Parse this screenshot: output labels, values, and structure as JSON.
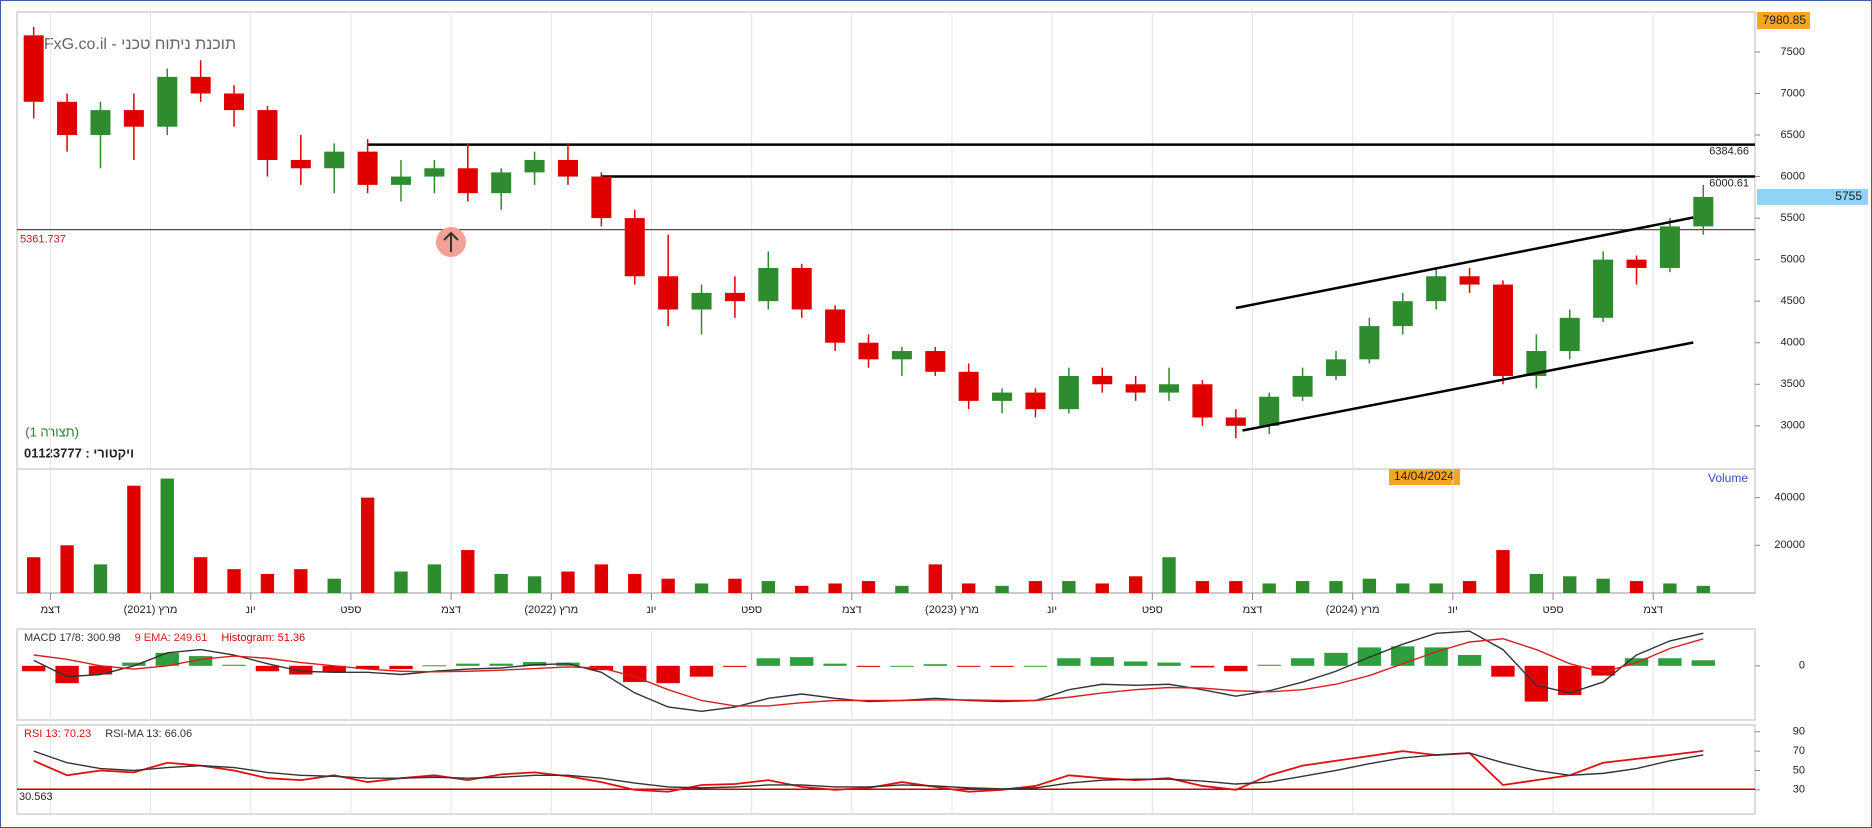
{
  "chart_data": [
    {
      "type": "candlestick",
      "title": "תוכנת ניתוח טכני - FxG.co.il",
      "annotations": [
        "(תצורה 1)",
        "ויקטורי : 01123777",
        "14/04/2024"
      ],
      "up_color": "#2e8b2e",
      "down_color": "#e00000",
      "open": [
        7700,
        6900,
        6500,
        6800,
        6600,
        7200,
        7000,
        6800,
        6200,
        6100,
        6300,
        5900,
        6000,
        6100,
        5800,
        6050,
        6200,
        6000,
        5500,
        4800,
        4400,
        4600,
        4500,
        4900,
        4400,
        4000,
        3800,
        3900,
        3650,
        3300,
        3400,
        3200,
        3600,
        3500,
        3400,
        3500,
        3100,
        3000,
        3350,
        3600,
        3800,
        4200,
        4500,
        4800,
        4700,
        3600,
        3900,
        4300,
        5000,
        4900,
        5400
      ],
      "high": [
        7800,
        7000,
        6900,
        7000,
        7300,
        7400,
        7100,
        6850,
        6500,
        6400,
        6450,
        6200,
        6200,
        6400,
        6100,
        6300,
        6400,
        6050,
        5600,
        5300,
        4700,
        4800,
        5100,
        4950,
        4450,
        4100,
        3950,
        3950,
        3750,
        3450,
        3450,
        3700,
        3700,
        3600,
        3700,
        3550,
        3200,
        3400,
        3700,
        3900,
        4300,
        4600,
        4900,
        4900,
        4750,
        4100,
        4400,
        5100,
        5050,
        5500,
        5900
      ],
      "low": [
        6700,
        6300,
        6100,
        6200,
        6500,
        6900,
        6600,
        6000,
        5900,
        5800,
        5800,
        5700,
        5800,
        5700,
        5600,
        5900,
        5900,
        5400,
        4700,
        4200,
        4100,
        4300,
        4400,
        4300,
        3900,
        3700,
        3600,
        3600,
        3200,
        3150,
        3100,
        3150,
        3400,
        3300,
        3300,
        3000,
        2850,
        2900,
        3300,
        3550,
        3750,
        4100,
        4400,
        4600,
        3500,
        3450,
        3800,
        4250,
        4700,
        4850,
        5300
      ],
      "close": [
        6900,
        6500,
        6800,
        6600,
        7200,
        7000,
        6800,
        6200,
        6100,
        6300,
        5900,
        6000,
        6100,
        5800,
        6050,
        6200,
        6000,
        5500,
        4800,
        4400,
        4600,
        4500,
        4900,
        4400,
        4000,
        3800,
        3900,
        3650,
        3300,
        3400,
        3200,
        3600,
        3500,
        3400,
        3500,
        3100,
        3000,
        3350,
        3600,
        3800,
        4200,
        4500,
        4800,
        4700,
        3600,
        3900,
        4300,
        5000,
        4900,
        5400,
        5755
      ],
      "ylim": [
        2480,
        7980.85
      ],
      "yticks": [
        3000,
        3500,
        4000,
        4500,
        5000,
        5500,
        6000,
        6500,
        7000,
        7500
      ],
      "levels": [
        {
          "value": 6384.66,
          "x": 10,
          "color": "#000000"
        },
        {
          "value": 6000.61,
          "x": 17,
          "color": "#000000"
        },
        {
          "value": 5361.737,
          "color": "#b22222"
        }
      ],
      "trendlines": [
        {
          "x": [
            36,
            49.7
          ],
          "y": [
            4418,
            5507
          ],
          "color": "#000000"
        },
        {
          "x": [
            36.2,
            49.7
          ],
          "y": [
            2943,
            4003
          ],
          "color": "#000000"
        }
      ]
    },
    {
      "type": "bar",
      "title": "Volume",
      "categories": [
        null,
        "דצמ",
        null,
        null,
        "מרץ (2021)",
        null,
        null,
        "יונ",
        null,
        null,
        "ספט",
        null,
        null,
        "דצמ",
        null,
        null,
        "מרץ (2022)",
        null,
        null,
        "יונ",
        null,
        null,
        "ספט",
        null,
        null,
        "דצמ",
        null,
        null,
        "מרץ (2023)",
        null,
        null,
        "יונ",
        null,
        null,
        "ספט",
        null,
        null,
        "דצמ",
        null,
        null,
        "מרץ (2024)",
        null,
        null,
        "יונ",
        null,
        null,
        "ספט",
        null,
        null,
        "דצמ",
        null
      ],
      "values": [
        15000,
        20000,
        12000,
        45000,
        48000,
        15000,
        10000,
        8000,
        10000,
        6000,
        40000,
        9000,
        12000,
        18000,
        8000,
        7000,
        9000,
        12000,
        8000,
        6000,
        4000,
        6000,
        5000,
        3000,
        4000,
        5000,
        3000,
        12000,
        4000,
        3000,
        5000,
        5000,
        4000,
        7000,
        15000,
        5000,
        5000,
        4000,
        5000,
        5000,
        6000,
        4000,
        4000,
        5000,
        18000,
        8000,
        7000,
        6000,
        5000,
        4000,
        3000
      ],
      "ylim": [
        0,
        52000
      ],
      "yticks": [
        20000,
        40000
      ]
    },
    {
      "type": "line",
      "series": [
        {
          "name": "MACD 17/8: 300.98",
          "color": "#333333",
          "values": [
            50,
            -100,
            -80,
            0,
            120,
            150,
            100,
            20,
            -50,
            -60,
            -60,
            -80,
            -50,
            -30,
            -20,
            10,
            20,
            -60,
            -250,
            -380,
            -420,
            -380,
            -300,
            -260,
            -300,
            -330,
            -320,
            -300,
            -320,
            -330,
            -320,
            -220,
            -170,
            -180,
            -170,
            -220,
            -280,
            -230,
            -150,
            -50,
            80,
            200,
            300,
            320,
            150,
            -180,
            -250,
            -150,
            100,
            230,
            300.98
          ]
        },
        {
          "name": "9 EMA: 249.61",
          "color": "#d62020",
          "values": [
            100,
            60,
            0,
            -30,
            0,
            60,
            90,
            70,
            30,
            0,
            -30,
            -50,
            -55,
            -50,
            -40,
            -25,
            -10,
            -20,
            -100,
            -220,
            -320,
            -370,
            -370,
            -340,
            -320,
            -320,
            -320,
            -315,
            -315,
            -320,
            -320,
            -290,
            -250,
            -220,
            -200,
            -205,
            -230,
            -240,
            -220,
            -170,
            -90,
            20,
            130,
            220,
            250,
            150,
            20,
            -60,
            30,
            160,
            249.61
          ]
        },
        {
          "name": "Histogram: 51.36",
          "style": "bar",
          "color": "#2e9e3e",
          "negative_color": "#e00000",
          "values": [
            -50,
            -160,
            -80,
            30,
            120,
            90,
            10,
            -50,
            -80,
            -60,
            -30,
            -30,
            5,
            20,
            20,
            35,
            30,
            -40,
            -150,
            -160,
            -100,
            -10,
            70,
            80,
            20,
            -10,
            0,
            15,
            -5,
            -10,
            0,
            70,
            80,
            40,
            30,
            -15,
            -50,
            10,
            70,
            120,
            170,
            180,
            170,
            100,
            -100,
            -330,
            -270,
            -90,
            70,
            70,
            51.36
          ]
        }
      ],
      "ylim": [
        -500,
        340
      ],
      "yticks": [
        0
      ]
    },
    {
      "type": "line",
      "series": [
        {
          "name": "RSI 13: 70.23",
          "color": "#e01010",
          "values": [
            60,
            45,
            50,
            48,
            58,
            55,
            50,
            42,
            40,
            45,
            38,
            42,
            45,
            40,
            46,
            48,
            44,
            38,
            30,
            28,
            35,
            36,
            40,
            33,
            30,
            32,
            38,
            33,
            28,
            30,
            34,
            45,
            42,
            40,
            42,
            34,
            30,
            45,
            55,
            60,
            65,
            70,
            66,
            68,
            35,
            40,
            45,
            58,
            62,
            66,
            70.23
          ]
        },
        {
          "name": "RSI-MA 13: 66.06",
          "color": "#333333",
          "values": [
            70,
            58,
            52,
            50,
            53,
            55,
            53,
            48,
            45,
            44,
            42,
            42,
            43,
            42,
            43,
            45,
            45,
            42,
            37,
            33,
            32,
            33,
            35,
            35,
            33,
            33,
            35,
            34,
            32,
            31,
            32,
            37,
            40,
            41,
            41,
            39,
            36,
            38,
            44,
            50,
            57,
            63,
            66,
            68,
            58,
            50,
            45,
            47,
            52,
            60,
            66.06
          ]
        }
      ],
      "levels": [
        {
          "value": 30.563,
          "color": "#c00000"
        }
      ],
      "ylim": [
        5,
        97
      ],
      "yticks": [
        30,
        50,
        70,
        90
      ]
    }
  ]
}
